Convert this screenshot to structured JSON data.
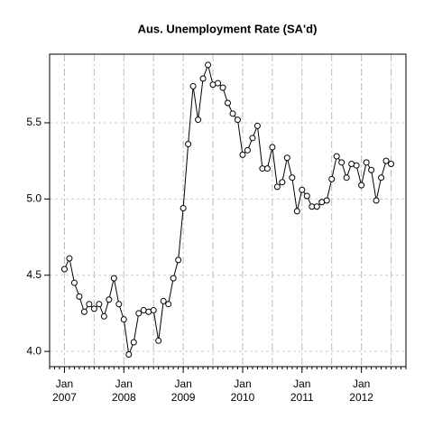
{
  "chart_data": {
    "type": "line",
    "title": "Aus. Unemployment Rate (SA'd)",
    "x": [
      "2007-01",
      "2007-02",
      "2007-03",
      "2007-04",
      "2007-05",
      "2007-06",
      "2007-07",
      "2007-08",
      "2007-09",
      "2007-10",
      "2007-11",
      "2007-12",
      "2008-01",
      "2008-02",
      "2008-03",
      "2008-04",
      "2008-05",
      "2008-06",
      "2008-07",
      "2008-08",
      "2008-09",
      "2008-10",
      "2008-11",
      "2008-12",
      "2009-01",
      "2009-02",
      "2009-03",
      "2009-04",
      "2009-05",
      "2009-06",
      "2009-07",
      "2009-08",
      "2009-09",
      "2009-10",
      "2009-11",
      "2009-12",
      "2010-01",
      "2010-02",
      "2010-03",
      "2010-04",
      "2010-05",
      "2010-06",
      "2010-07",
      "2010-08",
      "2010-09",
      "2010-10",
      "2010-11",
      "2010-12",
      "2011-01",
      "2011-02",
      "2011-03",
      "2011-04",
      "2011-05",
      "2011-06",
      "2011-07",
      "2011-08",
      "2011-09",
      "2011-10",
      "2011-11",
      "2011-12",
      "2012-01",
      "2012-02",
      "2012-03",
      "2012-04",
      "2012-05",
      "2012-06",
      "2012-07"
    ],
    "values": [
      4.54,
      4.61,
      4.45,
      4.36,
      4.26,
      4.31,
      4.28,
      4.31,
      4.23,
      4.34,
      4.48,
      4.31,
      4.21,
      3.98,
      4.06,
      4.25,
      4.27,
      4.26,
      4.27,
      4.07,
      4.33,
      4.31,
      4.48,
      4.6,
      4.94,
      5.36,
      5.74,
      5.52,
      5.79,
      5.88,
      5.75,
      5.76,
      5.73,
      5.63,
      5.56,
      5.52,
      5.29,
      5.32,
      5.4,
      5.48,
      5.2,
      5.2,
      5.34,
      5.08,
      5.11,
      5.27,
      5.14,
      4.92,
      5.06,
      5.02,
      4.95,
      4.95,
      4.98,
      4.99,
      5.13,
      5.28,
      5.24,
      5.14,
      5.23,
      5.22,
      5.09,
      5.24,
      5.19,
      4.99,
      5.14,
      5.25,
      5.23
    ],
    "color": "#000000",
    "xlim": [
      "2006-10",
      "2012-10"
    ],
    "xticks": [
      {
        "value": "2007-01",
        "label": [
          "Jan",
          "2007"
        ]
      },
      {
        "value": "2008-01",
        "label": [
          "Jan",
          "2008"
        ]
      },
      {
        "value": "2009-01",
        "label": [
          "Jan",
          "2009"
        ]
      },
      {
        "value": "2010-01",
        "label": [
          "Jan",
          "2010"
        ]
      },
      {
        "value": "2011-01",
        "label": [
          "Jan",
          "2011"
        ]
      },
      {
        "value": "2012-01",
        "label": [
          "Jan",
          "2012"
        ]
      }
    ],
    "xgrid": [
      "2007-01",
      "2007-07",
      "2008-01",
      "2008-07",
      "2009-01",
      "2009-07",
      "2010-01",
      "2010-07",
      "2011-01",
      "2011-07",
      "2012-01",
      "2012-07"
    ],
    "ylim": [
      3.9,
      5.95
    ],
    "yticks": [
      {
        "value": 4,
        "label": "4.0"
      },
      4.5,
      {
        "value": 5,
        "label": "5.0"
      },
      5.5
    ],
    "grid": true
  }
}
